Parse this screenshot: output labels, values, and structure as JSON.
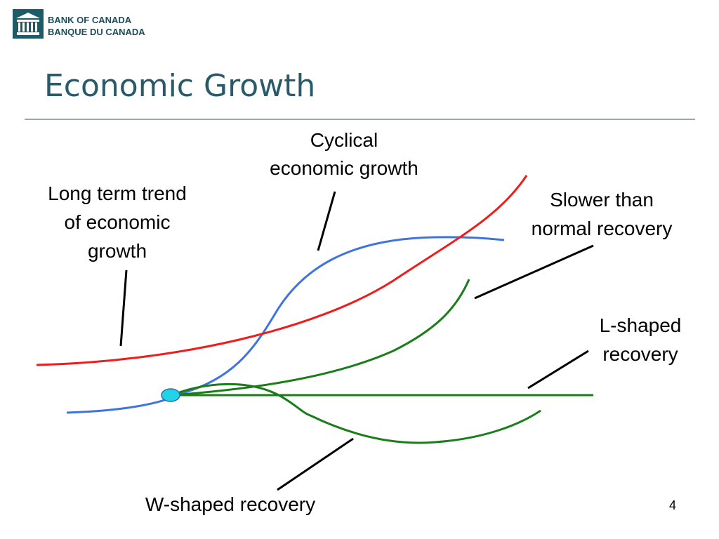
{
  "header": {
    "logo_lines": [
      "BANK OF CANADA",
      "BANQUE DU CANADA"
    ],
    "title": "Economic Growth"
  },
  "labels": [
    {
      "lines": [
        "Long term trend",
        "of economic",
        "growth"
      ]
    },
    {
      "lines": [
        "Cyclical",
        "economic growth"
      ]
    },
    {
      "lines": [
        "Slower than",
        "normal recovery"
      ]
    },
    {
      "lines": [
        "L-shaped",
        "recovery"
      ]
    },
    {
      "lines": [
        "W-shaped recovery"
      ]
    }
  ],
  "page_number": "4"
}
